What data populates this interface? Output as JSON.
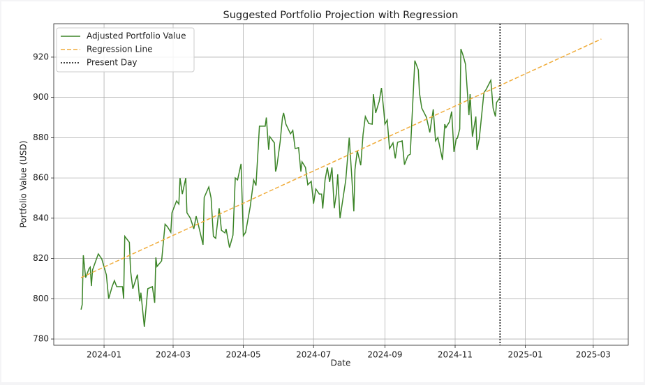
{
  "chart_data": {
    "type": "line",
    "title": "Suggested Portfolio Projection with Regression",
    "xlabel": "Date",
    "ylabel": "Portfolio Value (USD)",
    "xlim": [
      -43.7,
      455.4
    ],
    "ylim": [
      776.9,
      936.6
    ],
    "xticks": [
      {
        "value": 0,
        "label": "2024-01"
      },
      {
        "value": 60,
        "label": "2024-03"
      },
      {
        "value": 121,
        "label": "2024-05"
      },
      {
        "value": 182,
        "label": "2024-07"
      },
      {
        "value": 244,
        "label": "2024-09"
      },
      {
        "value": 305,
        "label": "2024-11"
      },
      {
        "value": 366,
        "label": "2025-01"
      },
      {
        "value": 425,
        "label": "2025-03"
      }
    ],
    "yticks": [
      780,
      800,
      820,
      840,
      860,
      880,
      900,
      920
    ],
    "grid": true,
    "legend": "upper left",
    "series": [
      {
        "name": "Adjusted Portfolio Value",
        "color": "#3b8427",
        "style": "solid",
        "x": [
          -20,
          -19,
          -18,
          -16,
          -13,
          -12,
          -11,
          -10,
          -5,
          -2,
          2,
          4,
          7,
          9,
          11,
          16,
          17,
          18,
          22,
          23,
          25,
          29,
          31,
          32,
          35,
          38,
          42,
          44,
          45,
          46,
          50,
          53,
          55,
          58,
          59,
          63,
          65,
          66,
          68,
          71,
          72,
          75,
          78,
          80,
          82,
          86,
          87,
          91,
          93,
          95,
          97,
          100,
          102,
          105,
          106,
          109,
          112,
          114,
          116,
          119,
          121,
          123,
          127,
          130,
          132,
          135,
          140,
          141,
          143,
          144,
          148,
          149,
          150,
          153,
          155,
          156,
          158,
          162,
          164,
          166,
          169,
          171,
          172,
          175,
          177,
          180,
          182,
          184,
          187,
          189,
          190,
          192,
          194,
          196,
          198,
          200,
          202,
          203,
          205,
          208,
          210,
          213,
          215,
          217,
          218,
          220,
          223,
          225,
          227,
          230,
          233,
          234,
          236,
          239,
          241,
          243,
          244,
          246,
          248,
          251,
          253,
          255,
          259,
          261,
          264,
          266,
          267,
          270,
          273,
          274,
          276,
          280,
          283,
          286,
          288,
          290,
          294,
          296,
          297,
          300,
          302,
          304,
          306,
          307,
          309,
          310,
          312,
          314,
          317,
          318,
          320,
          323,
          324,
          326,
          330,
          332,
          336,
          338,
          340,
          341,
          344
        ],
        "values": [
          794.6,
          797,
          821.6,
          810.5,
          815,
          815.7,
          806.3,
          814.3,
          822.3,
          819.8,
          811.9,
          800,
          806,
          809,
          806,
          806,
          800,
          831,
          828,
          814,
          805,
          812,
          798.7,
          803,
          786,
          805,
          806,
          798,
          820.5,
          816,
          818.8,
          837,
          835.8,
          833,
          842.7,
          848.6,
          847,
          860,
          852,
          860,
          842.7,
          840,
          834.7,
          841,
          836.5,
          826.8,
          850.3,
          855.5,
          850,
          831,
          830,
          845,
          834,
          832.7,
          834.7,
          825.4,
          831.6,
          860,
          859,
          867,
          831.3,
          833,
          845.8,
          859,
          856.2,
          885.7,
          885.7,
          890,
          874,
          880.5,
          877.4,
          863.2,
          865.2,
          878,
          890,
          892.3,
          886.7,
          881.9,
          883.6,
          874.6,
          875,
          863.2,
          868,
          865.2,
          856.6,
          858.3,
          847.2,
          854.5,
          852,
          852,
          844.8,
          859,
          865.2,
          858,
          865.2,
          845,
          853,
          861.8,
          840,
          851.4,
          859,
          880,
          862.5,
          843.4,
          864.2,
          873.6,
          866.3,
          881.5,
          890.5,
          887,
          886.7,
          901.6,
          892.3,
          898,
          904.7,
          893.6,
          886.7,
          888.8,
          874.6,
          877.4,
          869.7,
          877.7,
          878.4,
          866.6,
          871.1,
          871.8,
          883.3,
          918.3,
          913.7,
          902.3,
          894.7,
          890.2,
          882.6,
          894.1,
          878.4,
          880.1,
          869,
          886.7,
          885,
          887.8,
          893,
          872.9,
          879.5,
          879.8,
          884.3,
          924.1,
          920.7,
          916.5,
          891.2,
          901.6,
          880.5,
          890.5,
          873.9,
          879.5,
          902.3,
          904,
          908.5,
          894.7,
          890.5,
          897.5,
          899.9
        ]
      },
      {
        "name": "Regression Line",
        "color": "#f0ac3a",
        "style": "dashed",
        "x": [
          -20,
          432
        ],
        "values": [
          810.5,
          929
        ]
      }
    ],
    "vlines": [
      {
        "name": "Present Day",
        "color": "#000000",
        "style": "dotted",
        "x": 344
      }
    ]
  }
}
